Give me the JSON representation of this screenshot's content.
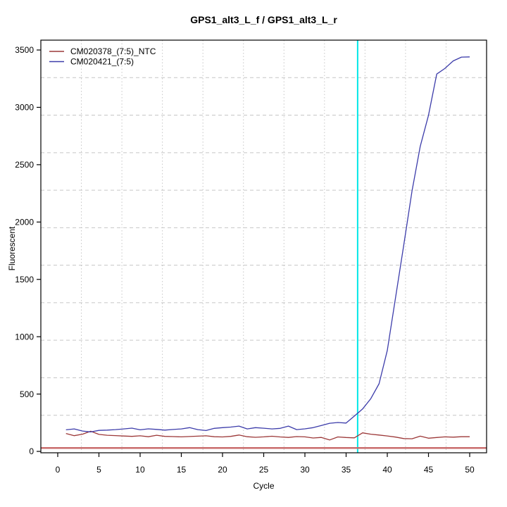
{
  "chart_data": {
    "type": "line",
    "title": "GPS1_alt3_L_f / GPS1_alt3_L_r",
    "xlabel": "Cycle",
    "ylabel": "Fluorescent",
    "xlim": [
      -2.05,
      52.05
    ],
    "ylim": [
      -12,
      3586
    ],
    "xticks": [
      0,
      5,
      10,
      15,
      20,
      25,
      30,
      35,
      40,
      45,
      50
    ],
    "yticks": [
      0,
      500,
      1000,
      1500,
      2000,
      2500,
      3000,
      3500
    ],
    "grid": {
      "nx": 11,
      "ny": 11,
      "color": "#c6c6c6"
    },
    "legend_position": "top-left",
    "crossing_vline": {
      "x": 36.4,
      "color": "#00e8e8"
    },
    "baseline_hline": {
      "y": 30,
      "color": "#c86868"
    },
    "x": [
      1,
      2,
      3,
      4,
      5,
      6,
      7,
      8,
      9,
      10,
      11,
      12,
      13,
      14,
      15,
      16,
      17,
      18,
      19,
      20,
      21,
      22,
      23,
      24,
      25,
      26,
      27,
      28,
      29,
      30,
      31,
      32,
      33,
      34,
      35,
      36,
      37,
      38,
      39,
      40,
      41,
      42,
      43,
      44,
      45,
      46,
      47,
      48,
      49,
      50
    ],
    "series": [
      {
        "name": "CM020378_(7:5)_NTC",
        "color": "#9c3838",
        "values": [
          156,
          137,
          150,
          176,
          148,
          141,
          138,
          134,
          131,
          136,
          128,
          141,
          131,
          129,
          127,
          130,
          133,
          136,
          128,
          126,
          131,
          143,
          128,
          123,
          127,
          132,
          126,
          122,
          129,
          127,
          117,
          122,
          100,
          126,
          121,
          118,
          162,
          150,
          143,
          135,
          125,
          112,
          110,
          133,
          115,
          121,
          127,
          124,
          128,
          128
        ]
      },
      {
        "name": "CM020421_(7:5)",
        "color": "#3c3caa",
        "values": [
          188,
          196,
          178,
          170,
          183,
          186,
          190,
          196,
          203,
          188,
          197,
          192,
          186,
          191,
          196,
          207,
          190,
          182,
          201,
          207,
          212,
          221,
          196,
          207,
          202,
          196,
          201,
          221,
          190,
          197,
          207,
          226,
          245,
          252,
          247,
          308,
          370,
          460,
          590,
          880,
          1340,
          1800,
          2270,
          2660,
          2930,
          3290,
          3340,
          3405,
          3438,
          3440
        ]
      }
    ]
  }
}
